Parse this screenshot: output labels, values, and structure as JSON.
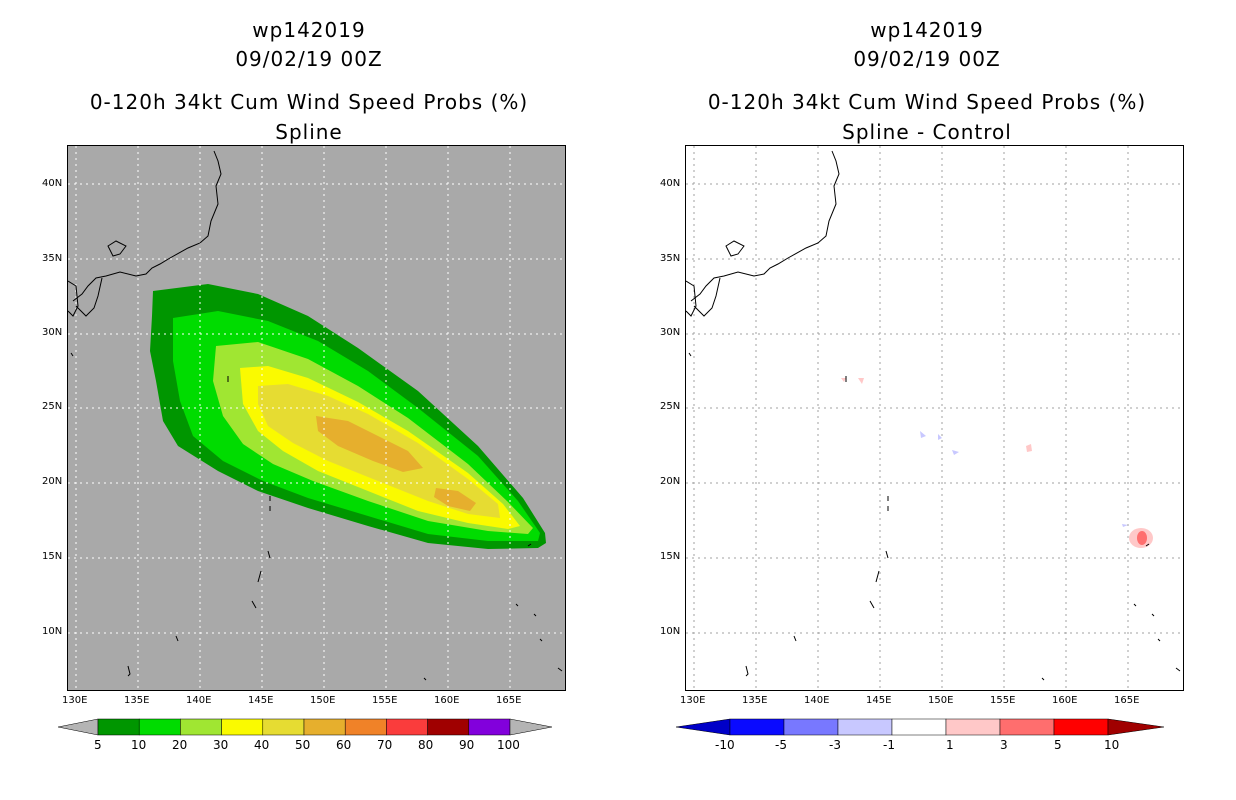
{
  "left": {
    "title1": "wp142019",
    "title2": "09/02/19 00Z",
    "title3": "0-120h 34kt Cum Wind Speed Probs (%)",
    "title4": "Spline",
    "colorbar_labels": [
      "5",
      "10",
      "20",
      "30",
      "40",
      "50",
      "60",
      "70",
      "80",
      "90",
      "100"
    ],
    "colorbar_colors": [
      "#009600",
      "#00dc00",
      "#a0e632",
      "#fafa00",
      "#e6dc32",
      "#e6af2d",
      "#f08228",
      "#fa3c3c",
      "#a00000",
      "#8200dc"
    ]
  },
  "right": {
    "title1": "wp142019",
    "title2": "09/02/19 00Z",
    "title3": "0-120h 34kt Cum Wind Speed Probs (%)",
    "title4": "Spline - Control",
    "colorbar_labels": [
      "-10",
      "-5",
      "-3",
      "-1",
      "1",
      "3",
      "5",
      "10"
    ],
    "colorbar_colors": [
      "#0000c8",
      "#0a0aff",
      "#7878ff",
      "#c8c8ff",
      "#ffffff",
      "#ffc8c8",
      "#ff6e6e",
      "#ff0000",
      "#a00000"
    ]
  },
  "axes": {
    "lat_labels": [
      "40N",
      "35N",
      "30N",
      "25N",
      "20N",
      "15N",
      "10N"
    ],
    "lon_labels": [
      "130E",
      "135E",
      "140E",
      "145E",
      "150E",
      "155E",
      "160E",
      "165E"
    ]
  }
}
